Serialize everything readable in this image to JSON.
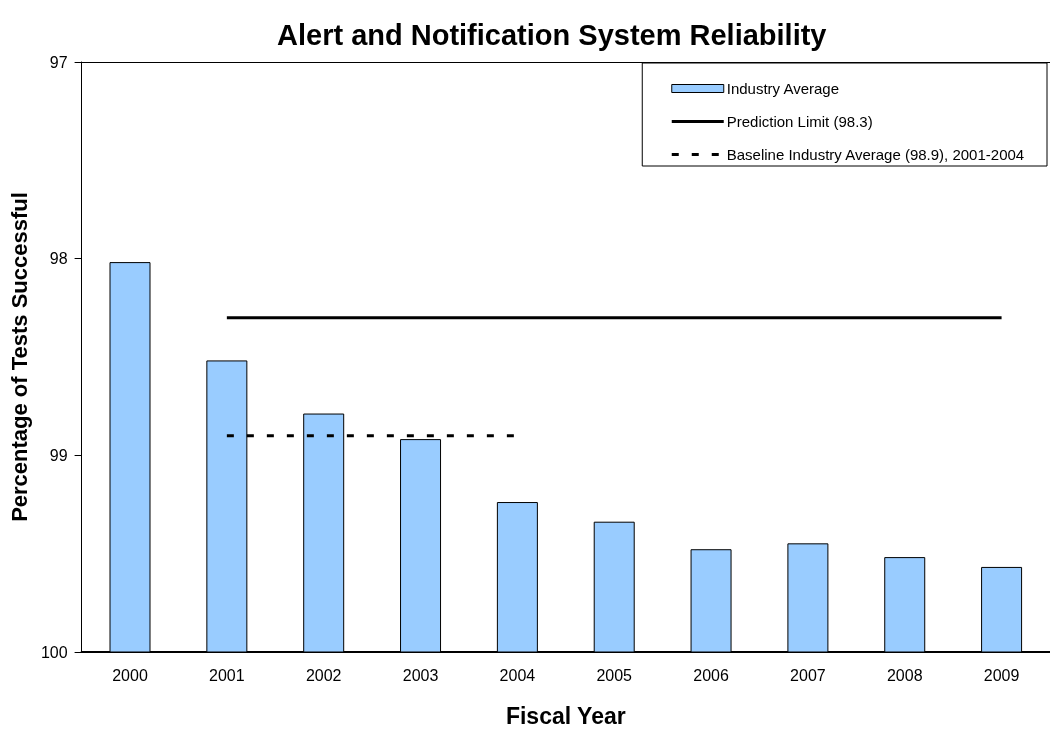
{
  "chart_data": {
    "type": "bar",
    "title": "Alert and Notification System Reliability",
    "xlabel": "Fiscal Year",
    "ylabel": "Percentage of Tests Successful",
    "categories": [
      "2000",
      "2001",
      "2002",
      "2003",
      "2004",
      "2005",
      "2006",
      "2007",
      "2008",
      "2009"
    ],
    "series": [
      {
        "name": "Industry Average",
        "color": "#99ccff",
        "base": [
          100,
          100,
          100,
          100,
          100,
          100,
          100,
          100,
          100,
          100
        ],
        "values": [
          -1.98,
          -1.48,
          -1.21,
          -1.08,
          -0.76,
          -0.66,
          -0.52,
          -0.55,
          -0.48,
          -0.43
        ]
      },
      {
        "name": "Prediction Limit (98.3)",
        "type": "line",
        "color": "#000000",
        "line_style": "solid",
        "values": [
          null,
          98.3,
          98.3,
          98.3,
          98.3,
          98.3,
          98.3,
          98.3,
          98.3,
          98.3
        ]
      },
      {
        "name": "Baseline Industry Average (98.9), 2001-2004",
        "type": "line",
        "color": "#000000",
        "line_style": "dashed",
        "values": [
          null,
          98.9,
          98.9,
          98.9,
          98.9,
          null,
          null,
          null,
          null,
          null
        ]
      }
    ],
    "ylim": [
      100,
      97
    ],
    "yticks": [
      97,
      98,
      99,
      100
    ],
    "legend": "top right",
    "marker": "none"
  }
}
